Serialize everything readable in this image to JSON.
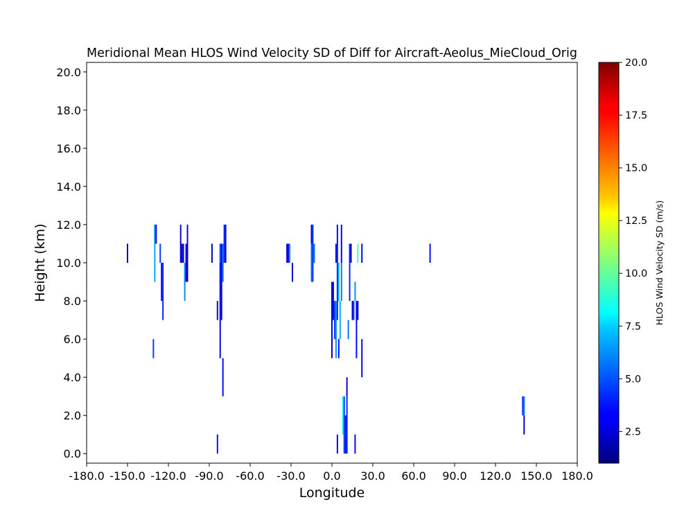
{
  "chart_data": {
    "type": "heatmap",
    "title": "Meridional Mean HLOS Wind Velocity SD of Diff for Aircraft-Aeolus_MieCloud_Orig",
    "xlabel": "Longitude",
    "ylabel": "Height (km)",
    "xlim": [
      -180,
      180
    ],
    "ylim": [
      -0.5,
      20.5
    ],
    "x_ticks": [
      -180,
      -150,
      -120,
      -90,
      -60,
      -30,
      0,
      30,
      60,
      90,
      120,
      150,
      180
    ],
    "x_tick_labels": [
      "-180.0",
      "-150.0",
      "-120.0",
      "-90.0",
      "-60.0",
      "-30.0",
      "0.0",
      "30.0",
      "60.0",
      "90.0",
      "120.0",
      "150.0",
      "180.0"
    ],
    "y_ticks": [
      0,
      2,
      4,
      6,
      8,
      10,
      12,
      14,
      16,
      18,
      20
    ],
    "y_tick_labels": [
      "0.0",
      "2.0",
      "4.0",
      "6.0",
      "8.0",
      "10.0",
      "12.0",
      "14.0",
      "16.0",
      "18.0",
      "20.0"
    ],
    "grid": false,
    "colorbar": {
      "label": "HLOS Wind Velocity SD (m/s)",
      "colormap": "jet",
      "vmin": 1.0,
      "vmax": 20.0,
      "ticks": [
        2.5,
        5.0,
        7.5,
        10.0,
        12.5,
        15.0,
        17.5,
        20.0
      ],
      "tick_labels": [
        "2.5",
        "5.0",
        "7.5",
        "10.0",
        "12.5",
        "15.0",
        "17.5",
        "20.0"
      ]
    },
    "cells": [
      {
        "lon": -150,
        "h0": 10,
        "h1": 11,
        "sd": 2.0
      },
      {
        "lon": -130,
        "h0": 11,
        "h1": 12,
        "sd": 6.0
      },
      {
        "lon": -130,
        "h0": 9,
        "h1": 11,
        "sd": 6.5
      },
      {
        "lon": -129,
        "h0": 11,
        "h1": 12,
        "sd": 3.0
      },
      {
        "lon": -131,
        "h0": 5,
        "h1": 6,
        "sd": 4.5
      },
      {
        "lon": -126,
        "h0": 10,
        "h1": 11,
        "sd": 4.5
      },
      {
        "lon": -125,
        "h0": 8,
        "h1": 10,
        "sd": 3.5
      },
      {
        "lon": -124,
        "h0": 7,
        "h1": 10,
        "sd": 4.0
      },
      {
        "lon": -111,
        "h0": 10,
        "h1": 12,
        "sd": 2.5
      },
      {
        "lon": -110,
        "h0": 10,
        "h1": 11,
        "sd": 2.0
      },
      {
        "lon": -109,
        "h0": 10,
        "h1": 11,
        "sd": 3.5
      },
      {
        "lon": -108,
        "h0": 8,
        "h1": 10,
        "sd": 6.0
      },
      {
        "lon": -107,
        "h0": 9,
        "h1": 11,
        "sd": 2.5
      },
      {
        "lon": -106,
        "h0": 9,
        "h1": 12,
        "sd": 3.0
      },
      {
        "lon": -88,
        "h0": 10,
        "h1": 11,
        "sd": 2.0
      },
      {
        "lon": -84,
        "h0": 7,
        "h1": 8,
        "sd": 2.5
      },
      {
        "lon": -84,
        "h0": 0,
        "h1": 1,
        "sd": 3.5
      },
      {
        "lon": -82,
        "h0": 10,
        "h1": 11,
        "sd": 4.5
      },
      {
        "lon": -82,
        "h0": 5,
        "h1": 10,
        "sd": 3.0
      },
      {
        "lon": -81,
        "h0": 7,
        "h1": 11,
        "sd": 2.5
      },
      {
        "lon": -80,
        "h0": 9,
        "h1": 11,
        "sd": 5.5
      },
      {
        "lon": -80,
        "h0": 3,
        "h1": 5,
        "sd": 3.5
      },
      {
        "lon": -79,
        "h0": 10,
        "h1": 12,
        "sd": 4.0
      },
      {
        "lon": -78,
        "h0": 10,
        "h1": 12,
        "sd": 3.0
      },
      {
        "lon": -33,
        "h0": 10,
        "h1": 11,
        "sd": 2.5
      },
      {
        "lon": -32,
        "h0": 10,
        "h1": 11,
        "sd": 3.5
      },
      {
        "lon": -31,
        "h0": 10,
        "h1": 11,
        "sd": 6.0
      },
      {
        "lon": -29,
        "h0": 9,
        "h1": 10,
        "sd": 2.5
      },
      {
        "lon": -15,
        "h0": 11,
        "h1": 12,
        "sd": 3.0
      },
      {
        "lon": -15,
        "h0": 9,
        "h1": 11,
        "sd": 5.5
      },
      {
        "lon": -14,
        "h0": 9,
        "h1": 12,
        "sd": 4.5
      },
      {
        "lon": -13,
        "h0": 10,
        "h1": 11,
        "sd": 5.5
      },
      {
        "lon": 0,
        "h0": 5,
        "h1": 9,
        "sd": 2.5
      },
      {
        "lon": 1,
        "h0": 7,
        "h1": 9,
        "sd": 3.5
      },
      {
        "lon": 2,
        "h0": 6,
        "h1": 8,
        "sd": 4.5
      },
      {
        "lon": 3,
        "h0": 10,
        "h1": 11,
        "sd": 3.0
      },
      {
        "lon": 3,
        "h0": 5,
        "h1": 8,
        "sd": 6.0
      },
      {
        "lon": 4,
        "h0": 11,
        "h1": 12,
        "sd": 3.5
      },
      {
        "lon": 4,
        "h0": 7,
        "h1": 11,
        "sd": 4.0
      },
      {
        "lon": 4,
        "h0": 0,
        "h1": 1,
        "sd": 3.0
      },
      {
        "lon": 5,
        "h0": 8,
        "h1": 10,
        "sd": 7.0
      },
      {
        "lon": 5,
        "h0": 5,
        "h1": 6,
        "sd": 3.5
      },
      {
        "lon": 6,
        "h0": 6,
        "h1": 8,
        "sd": 6.5
      },
      {
        "lon": 7,
        "h0": 10,
        "h1": 12,
        "sd": 3.0
      },
      {
        "lon": 7,
        "h0": 8,
        "h1": 10,
        "sd": 5.5
      },
      {
        "lon": 8,
        "h0": 1,
        "h1": 3,
        "sd": 8.5
      },
      {
        "lon": 9,
        "h0": 0,
        "h1": 3,
        "sd": 4.5
      },
      {
        "lon": 10,
        "h0": 0,
        "h1": 2,
        "sd": 3.5
      },
      {
        "lon": 11,
        "h0": 0,
        "h1": 3,
        "sd": 4.0
      },
      {
        "lon": 11,
        "h0": 3,
        "h1": 4,
        "sd": 2.5
      },
      {
        "lon": 12,
        "h0": 6,
        "h1": 7,
        "sd": 5.5
      },
      {
        "lon": 13,
        "h0": 8,
        "h1": 11,
        "sd": 4.0
      },
      {
        "lon": 14,
        "h0": 10,
        "h1": 11,
        "sd": 2.5
      },
      {
        "lon": 15,
        "h0": 7,
        "h1": 8,
        "sd": 3.0
      },
      {
        "lon": 16,
        "h0": 7,
        "h1": 8,
        "sd": 4.5
      },
      {
        "lon": 17,
        "h0": 0,
        "h1": 1,
        "sd": 3.5
      },
      {
        "lon": 17,
        "h0": 8,
        "h1": 9,
        "sd": 6.0
      },
      {
        "lon": 18,
        "h0": 5,
        "h1": 8,
        "sd": 3.5
      },
      {
        "lon": 19,
        "h0": 10,
        "h1": 11,
        "sd": 9.5
      },
      {
        "lon": 19,
        "h0": 7,
        "h1": 8,
        "sd": 2.5
      },
      {
        "lon": 22,
        "h0": 10,
        "h1": 11,
        "sd": 3.0
      },
      {
        "lon": 22,
        "h0": 4,
        "h1": 6,
        "sd": 3.0
      },
      {
        "lon": 72,
        "h0": 10,
        "h1": 11,
        "sd": 3.5
      },
      {
        "lon": 140,
        "h0": 2,
        "h1": 3,
        "sd": 4.0
      },
      {
        "lon": 141,
        "h0": 2,
        "h1": 3,
        "sd": 5.5
      },
      {
        "lon": 141,
        "h0": 1,
        "h1": 2,
        "sd": 2.5
      }
    ]
  }
}
